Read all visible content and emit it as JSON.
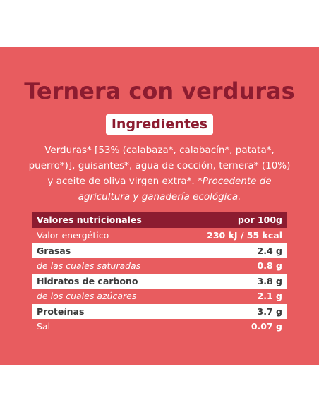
{
  "title": "Ternera con verduras",
  "ingredients_heading": "Ingredientes",
  "ingredients_text": "Verduras* [53% (calabaza*, calabacín*, patata*, puerro*)], guisantes*, agua de cocción, ternera* (10%) y aceite de oliva virgen extra*.",
  "ingredients_note": "*Procedente de agricultura y ganadería ecológica.",
  "nutrition": {
    "header_label": "Valores nutricionales",
    "header_value": "por 100g",
    "rows": [
      {
        "label": "Valor energético",
        "value": "230 kJ / 55 kcal",
        "style": "plain"
      },
      {
        "label": "Grasas",
        "value": "2.4 g",
        "style": "white"
      },
      {
        "label": "de las cuales saturadas",
        "value": "0.8 g",
        "style": "italic"
      },
      {
        "label": "Hidratos de carbono",
        "value": "3.8 g",
        "style": "white"
      },
      {
        "label": "de los cuales azúcares",
        "value": "2.1 g",
        "style": "italic"
      },
      {
        "label": "Proteínas",
        "value": "3.7 g",
        "style": "white"
      },
      {
        "label": "Sal",
        "value": "0.07 g",
        "style": "plain"
      }
    ]
  },
  "colors": {
    "background": "#e85c5f",
    "accent": "#8c1c30",
    "white": "#ffffff"
  }
}
